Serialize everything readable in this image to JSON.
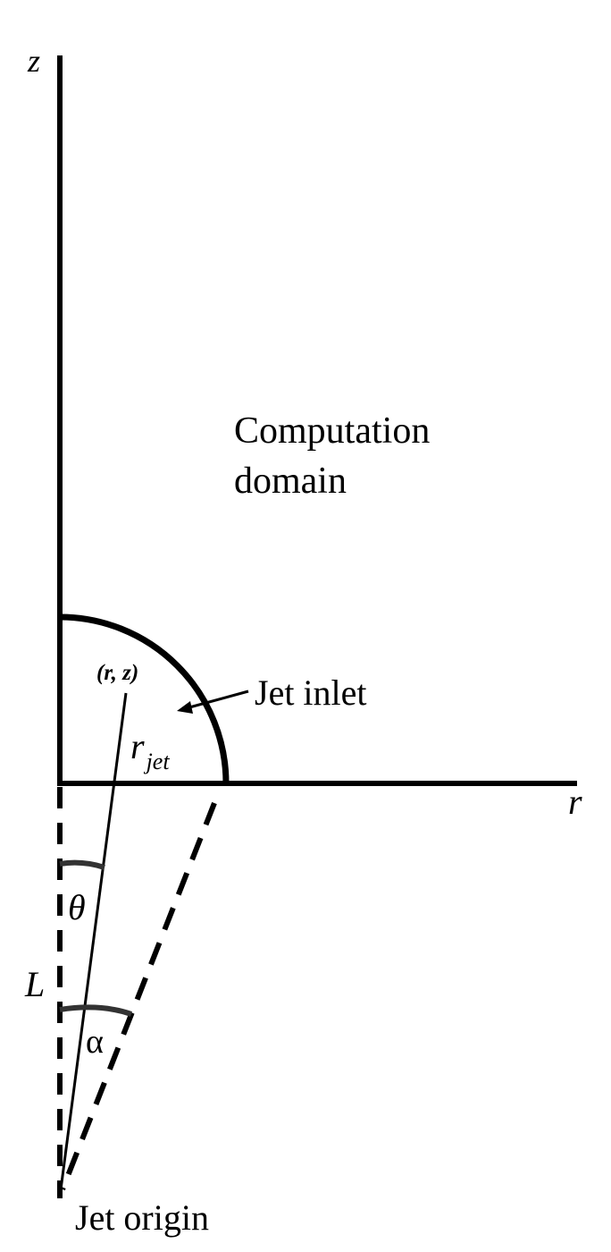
{
  "labels": {
    "z_axis": "z",
    "r_axis": "r",
    "domain_line1": "Computation",
    "domain_line2": "domain",
    "jet_inlet": "Jet inlet",
    "point": "(r, z)",
    "r_jet_base": "r",
    "r_jet_sub": "jet",
    "theta": "θ",
    "length": "L",
    "alpha": "α",
    "jet_origin": "Jet origin"
  },
  "colors": {
    "line": "#000000",
    "background": "#ffffff"
  }
}
